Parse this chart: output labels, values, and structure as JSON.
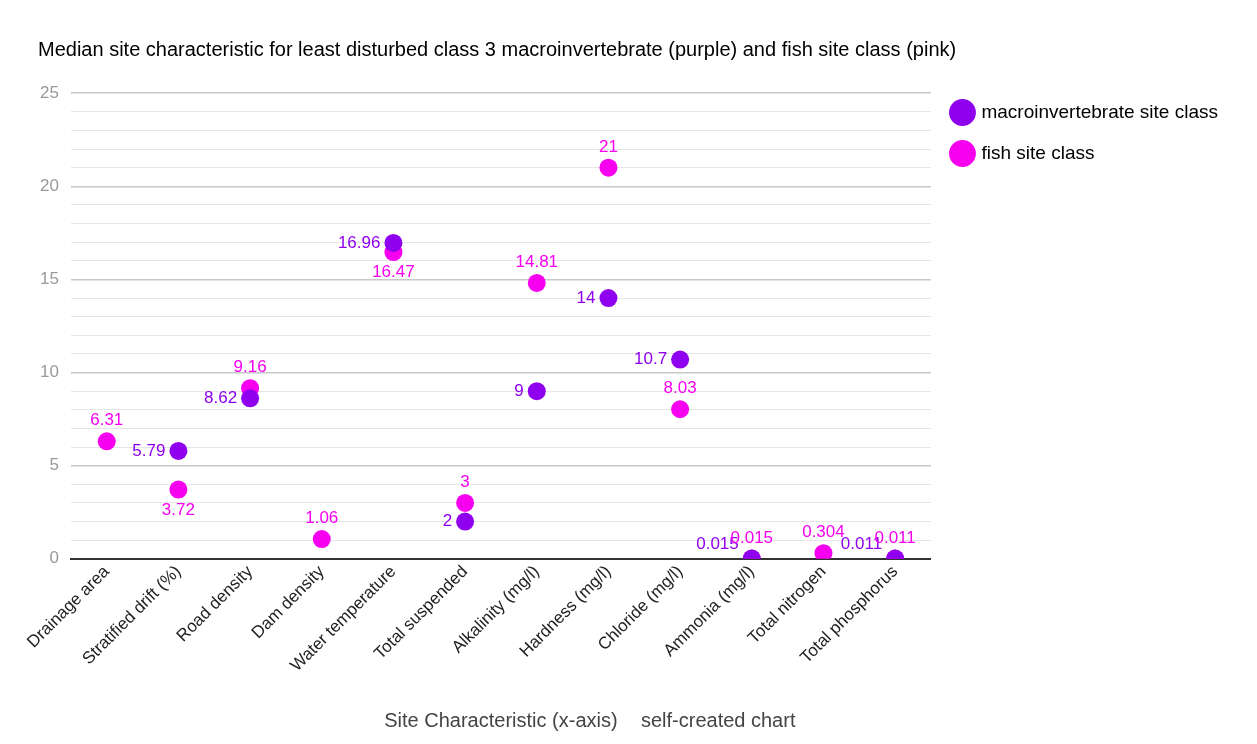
{
  "chart_data": {
    "type": "scatter",
    "title": "Median site characteristic for least disturbed class 3 macroinvertebrate (purple) and fish site class (pink)",
    "xlabel": "Site Characteristic (x-axis)",
    "annotations": [
      "self-created chart"
    ],
    "categories": [
      "Drainage area",
      "Stratified drift (%)",
      "Road density",
      "Dam density",
      "Water temperature",
      "Total suspended",
      "Alkalinity (mg/l)",
      "Hardness (mg/l)",
      "Chloride (mg/l)",
      "Ammonia (mg/l)",
      "Total nitrogen",
      "Total phosphorus"
    ],
    "series": [
      {
        "name": "macroinvertebrate site class",
        "color": "#8f00ee",
        "values": [
          null,
          5.79,
          8.62,
          null,
          16.96,
          2,
          9,
          14,
          10.7,
          0.015,
          null,
          0.011
        ]
      },
      {
        "name": "fish site class",
        "color": "#f700f0",
        "values": [
          6.31,
          3.72,
          9.16,
          1.06,
          16.47,
          3,
          14.81,
          21,
          8.03,
          0.015,
          0.304,
          0.011
        ]
      }
    ],
    "ylim": [
      0,
      25
    ],
    "yticks": [
      0,
      {
        "value": 1,
        "label": null
      },
      {
        "value": 2,
        "label": null
      },
      {
        "value": 3,
        "label": null
      },
      {
        "value": 4,
        "label": null
      },
      5,
      {
        "value": 6,
        "label": null
      },
      {
        "value": 7,
        "label": null
      },
      {
        "value": 8,
        "label": null
      },
      {
        "value": 9,
        "label": null
      },
      10,
      {
        "value": 11,
        "label": null
      },
      {
        "value": 12,
        "label": null
      },
      {
        "value": 13,
        "label": null
      },
      {
        "value": 14,
        "label": null
      },
      15,
      {
        "value": 16,
        "label": null
      },
      {
        "value": 17,
        "label": null
      },
      {
        "value": 18,
        "label": null
      },
      {
        "value": 19,
        "label": null
      },
      20,
      {
        "value": 21,
        "label": null
      },
      {
        "value": 22,
        "label": null
      },
      {
        "value": 23,
        "label": null
      },
      {
        "value": 24,
        "label": null
      },
      25
    ],
    "grid": "y",
    "legend": "top right",
    "marker": "circle",
    "data_labels": true
  }
}
